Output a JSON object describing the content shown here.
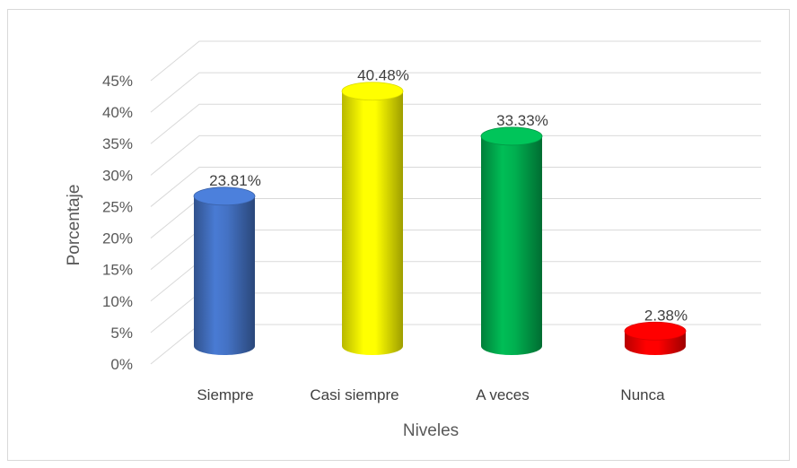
{
  "chart_data": {
    "type": "bar",
    "categories": [
      "Siempre",
      "Casi siempre",
      "A veces",
      "Nunca"
    ],
    "values": [
      23.81,
      40.48,
      33.33,
      2.38
    ],
    "value_labels": [
      "23.81%",
      "40.48%",
      "33.33%",
      "2.38%"
    ],
    "ylim": [
      0,
      45
    ],
    "y_ticks": [
      0,
      5,
      10,
      15,
      20,
      25,
      30,
      35,
      40,
      45
    ],
    "y_tick_labels": [
      "0%",
      "5%",
      "10%",
      "15%",
      "20%",
      "25%",
      "30%",
      "35%",
      "40%",
      "45%"
    ],
    "xlabel": "Niveles",
    "ylabel": "Porcentaje",
    "grid": true,
    "style": "3d-cylinder",
    "bar_colors": [
      "#4472c4",
      "#ffff00",
      "#00b050",
      "#ff0000"
    ]
  }
}
